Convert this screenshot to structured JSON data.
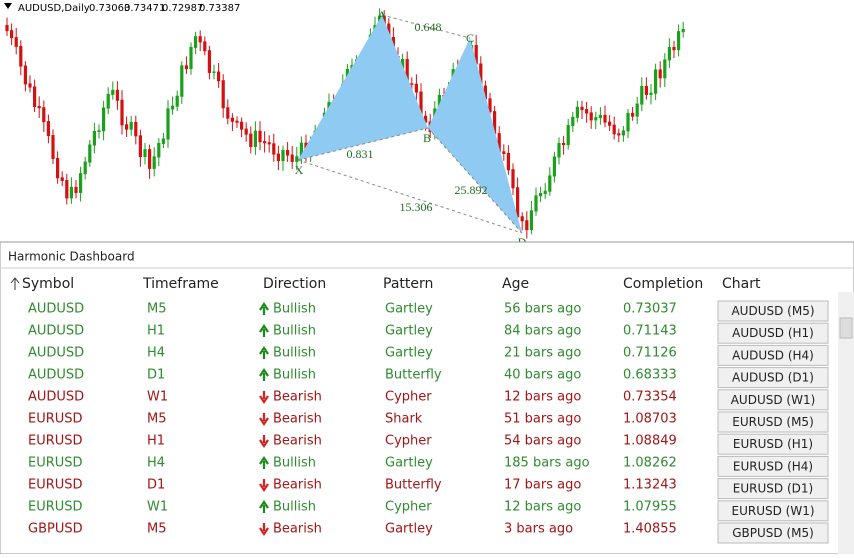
{
  "chart": {
    "header": "AUDUSD,Daily",
    "prices": [
      "0.73063",
      "0.73471",
      "0.72987",
      "0.73387"
    ],
    "points": [
      "X",
      "A",
      "B",
      "C",
      "D"
    ],
    "ratios": [
      "0.648",
      "0.831",
      "25.892",
      "15.306"
    ]
  },
  "dashboard": {
    "title": "Harmonic Dashboard",
    "columns": [
      "Symbol",
      "Timeframe",
      "Direction",
      "Pattern",
      "Age",
      "Completion",
      "Chart"
    ],
    "rows": [
      {
        "symbol": "AUDUSD",
        "timeframe": "M5",
        "direction": "Bullish",
        "pattern": "Gartley",
        "age": "56 bars ago",
        "completion": "0.73037",
        "chart": "AUDUSD (M5)",
        "color": "#2e8b2e",
        "arrow": "up"
      },
      {
        "symbol": "AUDUSD",
        "timeframe": "H1",
        "direction": "Bullish",
        "pattern": "Gartley",
        "age": "84 bars ago",
        "completion": "0.71143",
        "chart": "AUDUSD (H1)",
        "color": "#2e8b2e",
        "arrow": "up"
      },
      {
        "symbol": "AUDUSD",
        "timeframe": "H4",
        "direction": "Bullish",
        "pattern": "Gartley",
        "age": "21 bars ago",
        "completion": "0.71126",
        "chart": "AUDUSD (H4)",
        "color": "#2e8b2e",
        "arrow": "up"
      },
      {
        "symbol": "AUDUSD",
        "timeframe": "D1",
        "direction": "Bullish",
        "pattern": "Butterfly",
        "age": "40 bars ago",
        "completion": "0.68333",
        "chart": "AUDUSD (D1)",
        "color": "#2e8b2e",
        "arrow": "up"
      },
      {
        "symbol": "AUDUSD",
        "timeframe": "W1",
        "direction": "Bearish",
        "pattern": "Cypher",
        "age": "12 bars ago",
        "completion": "0.73354",
        "chart": "AUDUSD (W1)",
        "color": "#a31515",
        "arrow": "down"
      },
      {
        "symbol": "EURUSD",
        "timeframe": "M5",
        "direction": "Bearish",
        "pattern": "Shark",
        "age": "51 bars ago",
        "completion": "1.08703",
        "chart": "EURUSD (M5)",
        "color": "#a31515",
        "arrow": "down"
      },
      {
        "symbol": "EURUSD",
        "timeframe": "H1",
        "direction": "Bearish",
        "pattern": "Cypher",
        "age": "54 bars ago",
        "completion": "1.08849",
        "chart": "EURUSD (H1)",
        "color": "#a31515",
        "arrow": "down"
      },
      {
        "symbol": "EURUSD",
        "timeframe": "H4",
        "direction": "Bullish",
        "pattern": "Gartley",
        "age": "185 bars ago",
        "completion": "1.08262",
        "chart": "EURUSD (H4)",
        "color": "#2e8b2e",
        "arrow": "up"
      },
      {
        "symbol": "EURUSD",
        "timeframe": "D1",
        "direction": "Bearish",
        "pattern": "Butterfly",
        "age": "17 bars ago",
        "completion": "1.13243",
        "chart": "EURUSD (D1)",
        "color": "#a31515",
        "arrow": "down"
      },
      {
        "symbol": "EURUSD",
        "timeframe": "W1",
        "direction": "Bullish",
        "pattern": "Cypher",
        "age": "12 bars ago",
        "completion": "1.07955",
        "chart": "EURUSD (W1)",
        "color": "#2e8b2e",
        "arrow": "up"
      },
      {
        "symbol": "GBPUSD",
        "timeframe": "M5",
        "direction": "Bearish",
        "pattern": "Gartley",
        "age": "3 bars ago",
        "completion": "1.40855",
        "chart": "GBPUSD (M5)",
        "color": "#a31515",
        "arrow": "down"
      }
    ]
  }
}
